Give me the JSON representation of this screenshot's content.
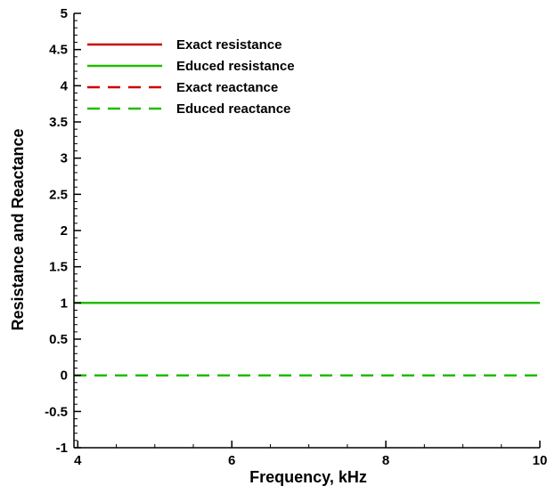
{
  "chart_data": {
    "type": "line",
    "title": "",
    "xlabel": "Frequency, kHz",
    "ylabel": "Resistance and Reactance",
    "xlim": [
      3.95,
      10
    ],
    "ylim": [
      -1,
      5
    ],
    "x_ticks": [
      {
        "value": 4,
        "label": "4"
      },
      {
        "value": 6,
        "label": "6"
      },
      {
        "value": 8,
        "label": "8"
      },
      {
        "value": 10,
        "label": "10"
      }
    ],
    "x_minor_step": 0.5,
    "y_ticks": [
      {
        "value": -1,
        "label": "-1"
      },
      {
        "value": -0.5,
        "label": "-0.5"
      },
      {
        "value": 0,
        "label": "0"
      },
      {
        "value": 0.5,
        "label": "0.5"
      },
      {
        "value": 1,
        "label": "1"
      },
      {
        "value": 1.5,
        "label": "1.5"
      },
      {
        "value": 2,
        "label": "2"
      },
      {
        "value": 2.5,
        "label": "2.5"
      },
      {
        "value": 3,
        "label": "3"
      },
      {
        "value": 3.5,
        "label": "3.5"
      },
      {
        "value": 4,
        "label": "4"
      },
      {
        "value": 4.5,
        "label": "4.5"
      },
      {
        "value": 5,
        "label": "5"
      }
    ],
    "y_minor_step": 0.1,
    "grid": false,
    "legend_position": "top-left",
    "series": [
      {
        "name": "Exact resistance",
        "color": "#cc0000",
        "dash": "solid",
        "x": [
          3.95,
          10
        ],
        "y": [
          1,
          1
        ]
      },
      {
        "name": "Educed resistance",
        "color": "#22bb00",
        "dash": "solid",
        "x": [
          3.95,
          10
        ],
        "y": [
          1,
          1
        ]
      },
      {
        "name": "Exact reactance",
        "color": "#cc0000",
        "dash": "dashed",
        "x": [
          3.95,
          10
        ],
        "y": [
          0,
          0
        ]
      },
      {
        "name": "Educed reactance",
        "color": "#22bb00",
        "dash": "dashed",
        "x": [
          3.95,
          10
        ],
        "y": [
          0,
          0
        ]
      }
    ]
  }
}
